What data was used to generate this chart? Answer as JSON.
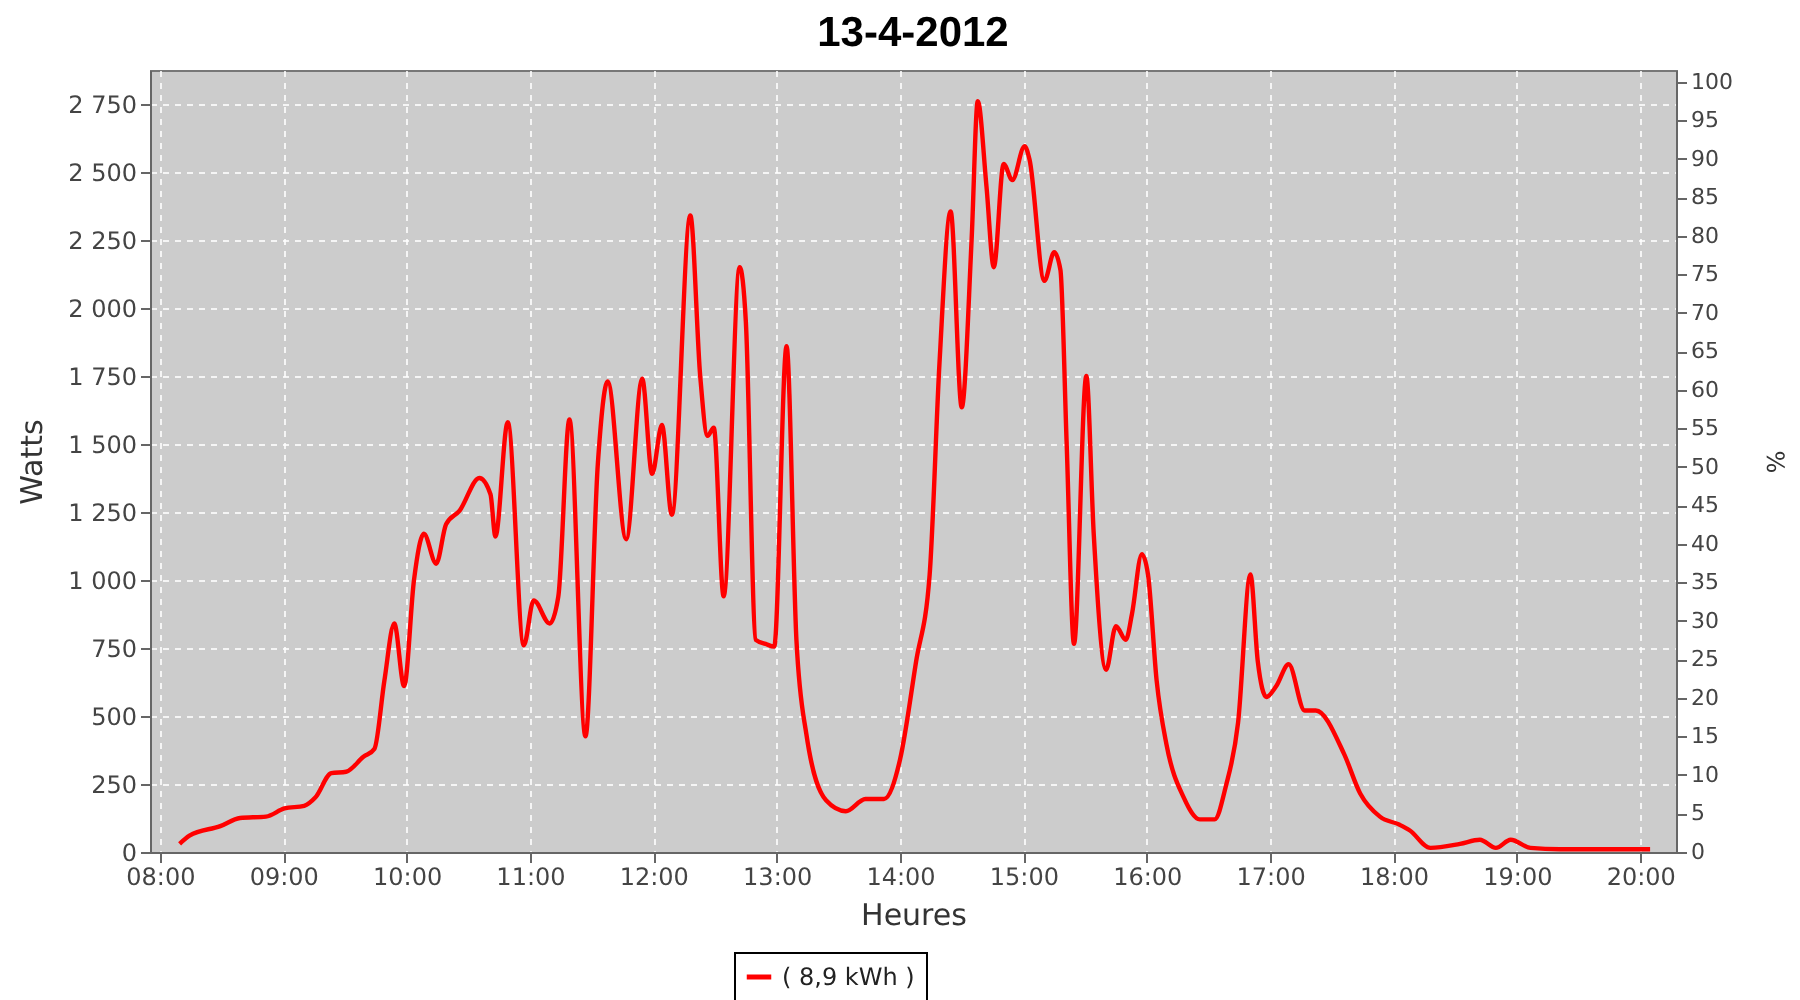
{
  "chart_data": {
    "type": "line",
    "title": "13-4-2012",
    "xlabel": "Heures",
    "ylabel": "Watts",
    "y2label": "%",
    "x": [
      8.16,
      8.24,
      8.49,
      8.65,
      8.86,
      9.01,
      9.17,
      9.26,
      9.39,
      9.51,
      9.65,
      9.74,
      9.82,
      9.9,
      9.98,
      10.06,
      10.14,
      10.24,
      10.32,
      10.43,
      10.59,
      10.68,
      10.72,
      10.82,
      10.95,
      11.03,
      11.16,
      11.23,
      11.32,
      11.45,
      11.55,
      11.63,
      11.78,
      11.91,
      11.99,
      12.07,
      12.15,
      12.3,
      12.38,
      12.44,
      12.49,
      12.57,
      12.7,
      12.75,
      12.83,
      12.91,
      12.98,
      13.08,
      13.16,
      13.24,
      13.4,
      13.56,
      13.72,
      13.87,
      14.0,
      14.13,
      14.24,
      14.32,
      14.41,
      14.5,
      14.58,
      14.63,
      14.7,
      14.76,
      14.84,
      14.91,
      15.01,
      15.05,
      15.17,
      15.25,
      15.3,
      15.35,
      15.41,
      15.51,
      15.57,
      15.67,
      15.75,
      15.83,
      15.88,
      15.96,
      16.01,
      16.08,
      16.16,
      16.3,
      16.43,
      16.55,
      16.64,
      16.74,
      16.84,
      16.9,
      16.97,
      17.05,
      17.15,
      17.28,
      17.37,
      17.6,
      17.73,
      17.89,
      18.05,
      18.13,
      18.3,
      18.54,
      18.7,
      18.83,
      18.95,
      19.11,
      19.35,
      19.68,
      20.0,
      20.08
    ],
    "series": [
      {
        "name": "( 8,9 kWh )",
        "color": "#ff0000",
        "values": [
          30,
          60,
          95,
          125,
          130,
          160,
          170,
          200,
          290,
          295,
          350,
          380,
          630,
          840,
          610,
          1000,
          1170,
          1060,
          1205,
          1255,
          1375,
          1315,
          1160,
          1580,
          760,
          925,
          840,
          940,
          1590,
          425,
          1425,
          1730,
          1150,
          1740,
          1390,
          1570,
          1240,
          2340,
          1750,
          1530,
          1560,
          940,
          2150,
          1950,
          780,
          765,
          755,
          1860,
          780,
          435,
          190,
          150,
          195,
          195,
          340,
          700,
          1020,
          1800,
          2355,
          1635,
          2250,
          2760,
          2450,
          2150,
          2530,
          2470,
          2595,
          2545,
          2100,
          2205,
          2140,
          1510,
          765,
          1750,
          1170,
          670,
          830,
          780,
          875,
          1095,
          1020,
          630,
          395,
          200,
          120,
          120,
          240,
          475,
          1020,
          700,
          570,
          610,
          690,
          520,
          520,
          360,
          215,
          130,
          100,
          80,
          15,
          30,
          45,
          15,
          45,
          15,
          10,
          10,
          10,
          10
        ]
      }
    ],
    "xlim": [
      7.92,
      20.29
    ],
    "ylim": [
      0,
      2875
    ],
    "y2lim": [
      0,
      101.5
    ],
    "xticks": [
      {
        "value": 8,
        "label": "08:00"
      },
      {
        "value": 9,
        "label": "09:00"
      },
      {
        "value": 10,
        "label": "10:00"
      },
      {
        "value": 11,
        "label": "11:00"
      },
      {
        "value": 12,
        "label": "12:00"
      },
      {
        "value": 13,
        "label": "13:00"
      },
      {
        "value": 14,
        "label": "14:00"
      },
      {
        "value": 15,
        "label": "15:00"
      },
      {
        "value": 16,
        "label": "16:00"
      },
      {
        "value": 17,
        "label": "17:00"
      },
      {
        "value": 18,
        "label": "18:00"
      },
      {
        "value": 19,
        "label": "19:00"
      },
      {
        "value": 20,
        "label": "20:00"
      }
    ],
    "yticks": [
      0,
      250,
      500,
      750,
      {
        "value": 1000,
        "label": "1 000"
      },
      {
        "value": 1250,
        "label": "1 250"
      },
      {
        "value": 1500,
        "label": "1 500"
      },
      {
        "value": 1750,
        "label": "1 750"
      },
      {
        "value": 2000,
        "label": "2 000"
      },
      {
        "value": 2250,
        "label": "2 250"
      },
      {
        "value": 2500,
        "label": "2 500"
      },
      {
        "value": 2750,
        "label": "2 750"
      }
    ],
    "y2ticks": [
      0,
      5,
      10,
      15,
      20,
      25,
      30,
      35,
      40,
      45,
      50,
      55,
      60,
      65,
      70,
      75,
      80,
      85,
      90,
      95,
      100
    ],
    "grid": true,
    "legend": "bottom",
    "line_style": "solid",
    "marker": "none"
  }
}
